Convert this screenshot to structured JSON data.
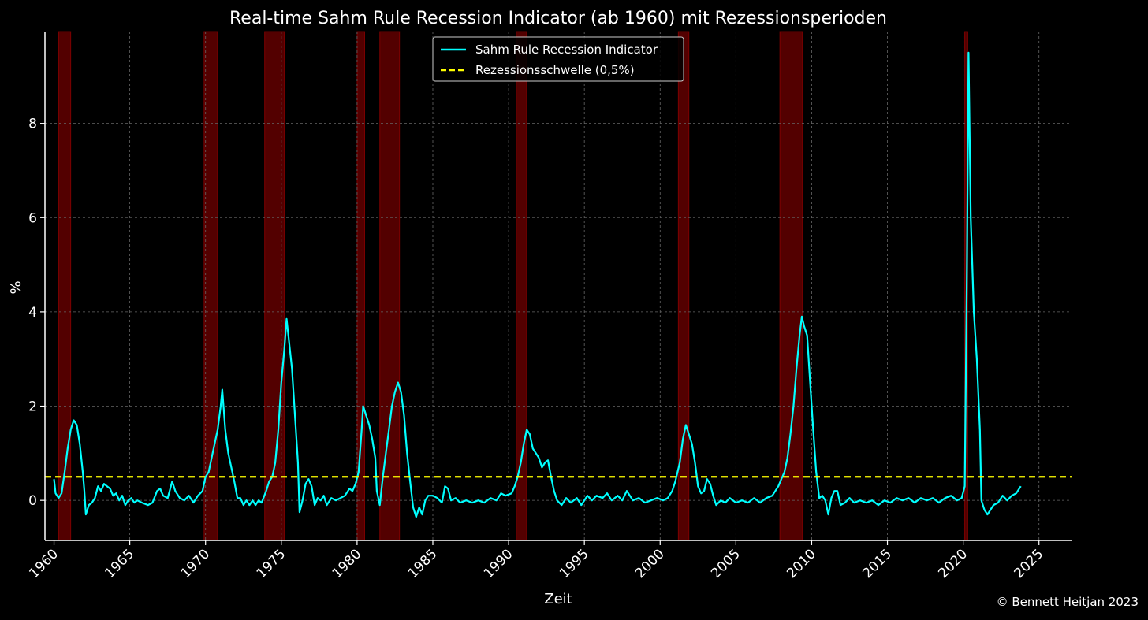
{
  "chart_data": {
    "type": "line",
    "title": "Real-time Sahm Rule Recession Indicator (ab 1960) mit Rezessionsperioden",
    "xlabel": "Zeit",
    "ylabel": "%",
    "xlim": [
      1959.4,
      2027.2
    ],
    "ylim": [
      -0.85,
      9.95
    ],
    "xticks": [
      1960,
      1965,
      1970,
      1975,
      1980,
      1985,
      1990,
      1995,
      2000,
      2005,
      2010,
      2015,
      2020,
      2025
    ],
    "yticks": [
      0,
      2,
      4,
      6,
      8
    ],
    "grid": true,
    "legend_position": "top-center",
    "series": [
      {
        "name": "Sahm Rule Recession Indicator",
        "color": "#00ffff",
        "points": [
          [
            1960.0,
            0.45
          ],
          [
            1960.1,
            0.15
          ],
          [
            1960.3,
            0.05
          ],
          [
            1960.5,
            0.15
          ],
          [
            1960.7,
            0.6
          ],
          [
            1960.9,
            1.1
          ],
          [
            1961.1,
            1.5
          ],
          [
            1961.3,
            1.7
          ],
          [
            1961.5,
            1.6
          ],
          [
            1961.7,
            1.2
          ],
          [
            1961.9,
            0.6
          ],
          [
            1962.0,
            0.2
          ],
          [
            1962.1,
            -0.3
          ],
          [
            1962.3,
            -0.1
          ],
          [
            1962.5,
            -0.05
          ],
          [
            1962.7,
            0.05
          ],
          [
            1962.9,
            0.3
          ],
          [
            1963.1,
            0.2
          ],
          [
            1963.3,
            0.35
          ],
          [
            1963.5,
            0.3
          ],
          [
            1963.7,
            0.25
          ],
          [
            1963.9,
            0.1
          ],
          [
            1964.1,
            0.15
          ],
          [
            1964.3,
            0.0
          ],
          [
            1964.5,
            0.1
          ],
          [
            1964.7,
            -0.1
          ],
          [
            1964.9,
            0.0
          ],
          [
            1965.1,
            0.05
          ],
          [
            1965.3,
            -0.05
          ],
          [
            1965.5,
            0.0
          ],
          [
            1965.8,
            -0.05
          ],
          [
            1966.2,
            -0.1
          ],
          [
            1966.5,
            -0.05
          ],
          [
            1966.8,
            0.2
          ],
          [
            1967.0,
            0.25
          ],
          [
            1967.2,
            0.1
          ],
          [
            1967.5,
            0.05
          ],
          [
            1967.8,
            0.4
          ],
          [
            1968.0,
            0.2
          ],
          [
            1968.3,
            0.05
          ],
          [
            1968.6,
            0.0
          ],
          [
            1968.9,
            0.1
          ],
          [
            1969.2,
            -0.05
          ],
          [
            1969.5,
            0.1
          ],
          [
            1969.8,
            0.2
          ],
          [
            1970.0,
            0.5
          ],
          [
            1970.2,
            0.6
          ],
          [
            1970.4,
            0.9
          ],
          [
            1970.6,
            1.2
          ],
          [
            1970.8,
            1.5
          ],
          [
            1971.0,
            2.0
          ],
          [
            1971.1,
            2.35
          ],
          [
            1971.3,
            1.5
          ],
          [
            1971.5,
            1.0
          ],
          [
            1971.7,
            0.7
          ],
          [
            1971.9,
            0.4
          ],
          [
            1972.1,
            0.05
          ],
          [
            1972.3,
            0.05
          ],
          [
            1972.5,
            -0.1
          ],
          [
            1972.7,
            0.0
          ],
          [
            1972.9,
            -0.1
          ],
          [
            1973.1,
            0.0
          ],
          [
            1973.3,
            -0.1
          ],
          [
            1973.5,
            0.0
          ],
          [
            1973.7,
            -0.05
          ],
          [
            1974.0,
            0.2
          ],
          [
            1974.2,
            0.4
          ],
          [
            1974.4,
            0.5
          ],
          [
            1974.6,
            0.8
          ],
          [
            1974.8,
            1.5
          ],
          [
            1975.0,
            2.5
          ],
          [
            1975.2,
            3.2
          ],
          [
            1975.35,
            3.85
          ],
          [
            1975.5,
            3.4
          ],
          [
            1975.7,
            2.8
          ],
          [
            1975.9,
            1.8
          ],
          [
            1976.1,
            0.8
          ],
          [
            1976.2,
            -0.25
          ],
          [
            1976.4,
            0.0
          ],
          [
            1976.6,
            0.35
          ],
          [
            1976.8,
            0.45
          ],
          [
            1977.0,
            0.3
          ],
          [
            1977.2,
            -0.1
          ],
          [
            1977.4,
            0.05
          ],
          [
            1977.6,
            0.0
          ],
          [
            1977.8,
            0.1
          ],
          [
            1978.0,
            -0.1
          ],
          [
            1978.3,
            0.05
          ],
          [
            1978.6,
            0.0
          ],
          [
            1978.9,
            0.05
          ],
          [
            1979.2,
            0.1
          ],
          [
            1979.5,
            0.25
          ],
          [
            1979.7,
            0.2
          ],
          [
            1979.9,
            0.35
          ],
          [
            1980.1,
            0.6
          ],
          [
            1980.3,
            1.5
          ],
          [
            1980.4,
            2.0
          ],
          [
            1980.6,
            1.8
          ],
          [
            1980.8,
            1.6
          ],
          [
            1981.0,
            1.3
          ],
          [
            1981.2,
            0.9
          ],
          [
            1981.3,
            0.2
          ],
          [
            1981.5,
            -0.1
          ],
          [
            1981.7,
            0.5
          ],
          [
            1981.9,
            1.0
          ],
          [
            1982.1,
            1.5
          ],
          [
            1982.3,
            2.0
          ],
          [
            1982.5,
            2.3
          ],
          [
            1982.7,
            2.5
          ],
          [
            1982.9,
            2.3
          ],
          [
            1983.1,
            1.8
          ],
          [
            1983.3,
            1.0
          ],
          [
            1983.5,
            0.4
          ],
          [
            1983.7,
            -0.15
          ],
          [
            1983.9,
            -0.35
          ],
          [
            1984.1,
            -0.15
          ],
          [
            1984.3,
            -0.3
          ],
          [
            1984.5,
            0.0
          ],
          [
            1984.7,
            0.1
          ],
          [
            1985.0,
            0.1
          ],
          [
            1985.3,
            0.05
          ],
          [
            1985.6,
            -0.05
          ],
          [
            1985.8,
            0.3
          ],
          [
            1986.0,
            0.25
          ],
          [
            1986.2,
            0.0
          ],
          [
            1986.5,
            0.05
          ],
          [
            1986.8,
            -0.05
          ],
          [
            1987.2,
            0.0
          ],
          [
            1987.6,
            -0.05
          ],
          [
            1988.0,
            0.0
          ],
          [
            1988.4,
            -0.05
          ],
          [
            1988.8,
            0.05
          ],
          [
            1989.2,
            0.0
          ],
          [
            1989.5,
            0.15
          ],
          [
            1989.8,
            0.1
          ],
          [
            1990.2,
            0.15
          ],
          [
            1990.4,
            0.3
          ],
          [
            1990.6,
            0.5
          ],
          [
            1990.8,
            0.8
          ],
          [
            1991.0,
            1.2
          ],
          [
            1991.2,
            1.5
          ],
          [
            1991.4,
            1.4
          ],
          [
            1991.6,
            1.1
          ],
          [
            1991.8,
            1.0
          ],
          [
            1992.0,
            0.9
          ],
          [
            1992.2,
            0.7
          ],
          [
            1992.4,
            0.8
          ],
          [
            1992.6,
            0.85
          ],
          [
            1992.8,
            0.5
          ],
          [
            1993.0,
            0.2
          ],
          [
            1993.2,
            0.0
          ],
          [
            1993.5,
            -0.1
          ],
          [
            1993.8,
            0.05
          ],
          [
            1994.1,
            -0.05
          ],
          [
            1994.5,
            0.05
          ],
          [
            1994.8,
            -0.1
          ],
          [
            1995.2,
            0.1
          ],
          [
            1995.5,
            0.0
          ],
          [
            1995.8,
            0.1
          ],
          [
            1996.2,
            0.05
          ],
          [
            1996.5,
            0.15
          ],
          [
            1996.8,
            0.0
          ],
          [
            1997.2,
            0.1
          ],
          [
            1997.5,
            0.0
          ],
          [
            1997.8,
            0.2
          ],
          [
            1998.2,
            0.0
          ],
          [
            1998.6,
            0.05
          ],
          [
            1999.0,
            -0.05
          ],
          [
            1999.4,
            0.0
          ],
          [
            1999.8,
            0.05
          ],
          [
            2000.2,
            0.0
          ],
          [
            2000.5,
            0.05
          ],
          [
            2000.8,
            0.2
          ],
          [
            2001.0,
            0.4
          ],
          [
            2001.3,
            0.8
          ],
          [
            2001.5,
            1.3
          ],
          [
            2001.7,
            1.6
          ],
          [
            2001.9,
            1.4
          ],
          [
            2002.1,
            1.2
          ],
          [
            2002.3,
            0.8
          ],
          [
            2002.5,
            0.3
          ],
          [
            2002.7,
            0.15
          ],
          [
            2002.9,
            0.2
          ],
          [
            2003.1,
            0.45
          ],
          [
            2003.3,
            0.35
          ],
          [
            2003.5,
            0.1
          ],
          [
            2003.7,
            -0.1
          ],
          [
            2004.0,
            0.0
          ],
          [
            2004.3,
            -0.05
          ],
          [
            2004.6,
            0.05
          ],
          [
            2005.0,
            -0.05
          ],
          [
            2005.4,
            0.0
          ],
          [
            2005.8,
            -0.05
          ],
          [
            2006.2,
            0.05
          ],
          [
            2006.6,
            -0.05
          ],
          [
            2007.0,
            0.05
          ],
          [
            2007.4,
            0.1
          ],
          [
            2007.8,
            0.3
          ],
          [
            2008.0,
            0.45
          ],
          [
            2008.2,
            0.6
          ],
          [
            2008.4,
            0.9
          ],
          [
            2008.6,
            1.4
          ],
          [
            2008.8,
            2.0
          ],
          [
            2009.0,
            2.8
          ],
          [
            2009.2,
            3.5
          ],
          [
            2009.35,
            3.9
          ],
          [
            2009.5,
            3.7
          ],
          [
            2009.7,
            3.5
          ],
          [
            2009.9,
            2.5
          ],
          [
            2010.1,
            1.5
          ],
          [
            2010.3,
            0.6
          ],
          [
            2010.5,
            0.05
          ],
          [
            2010.7,
            0.1
          ],
          [
            2010.9,
            0.0
          ],
          [
            2011.1,
            -0.3
          ],
          [
            2011.3,
            0.05
          ],
          [
            2011.5,
            0.2
          ],
          [
            2011.7,
            0.2
          ],
          [
            2011.9,
            -0.1
          ],
          [
            2012.2,
            -0.05
          ],
          [
            2012.5,
            0.05
          ],
          [
            2012.8,
            -0.05
          ],
          [
            2013.2,
            0.0
          ],
          [
            2013.6,
            -0.05
          ],
          [
            2014.0,
            0.0
          ],
          [
            2014.4,
            -0.1
          ],
          [
            2014.8,
            0.0
          ],
          [
            2015.2,
            -0.05
          ],
          [
            2015.6,
            0.05
          ],
          [
            2016.0,
            0.0
          ],
          [
            2016.4,
            0.05
          ],
          [
            2016.8,
            -0.05
          ],
          [
            2017.2,
            0.05
          ],
          [
            2017.6,
            0.0
          ],
          [
            2018.0,
            0.05
          ],
          [
            2018.4,
            -0.05
          ],
          [
            2018.8,
            0.05
          ],
          [
            2019.2,
            0.1
          ],
          [
            2019.6,
            0.0
          ],
          [
            2019.9,
            0.05
          ],
          [
            2020.1,
            0.3
          ],
          [
            2020.25,
            5.0
          ],
          [
            2020.35,
            9.5
          ],
          [
            2020.5,
            6.0
          ],
          [
            2020.7,
            4.0
          ],
          [
            2020.9,
            3.0
          ],
          [
            2021.1,
            1.5
          ],
          [
            2021.2,
            0.0
          ],
          [
            2021.4,
            -0.2
          ],
          [
            2021.6,
            -0.3
          ],
          [
            2021.8,
            -0.2
          ],
          [
            2022.0,
            -0.1
          ],
          [
            2022.3,
            -0.05
          ],
          [
            2022.6,
            0.1
          ],
          [
            2022.9,
            0.0
          ],
          [
            2023.2,
            0.1
          ],
          [
            2023.5,
            0.15
          ],
          [
            2023.8,
            0.3
          ]
        ]
      },
      {
        "name": "Rezessionsschwelle (0,5%)",
        "color": "#ffff00",
        "dashed": true,
        "constant": 0.5
      }
    ],
    "recessions": [
      [
        1960.3,
        1961.1
      ],
      [
        1969.9,
        1970.8
      ],
      [
        1973.9,
        1975.2
      ],
      [
        1980.0,
        1980.5
      ],
      [
        1981.5,
        1982.8
      ],
      [
        1990.5,
        1991.2
      ],
      [
        2001.2,
        2001.9
      ],
      [
        2007.9,
        2009.4
      ],
      [
        2020.1,
        2020.3
      ]
    ],
    "recession_color": "#8b0000"
  },
  "copyright": "© Bennett Heitjan 2023"
}
